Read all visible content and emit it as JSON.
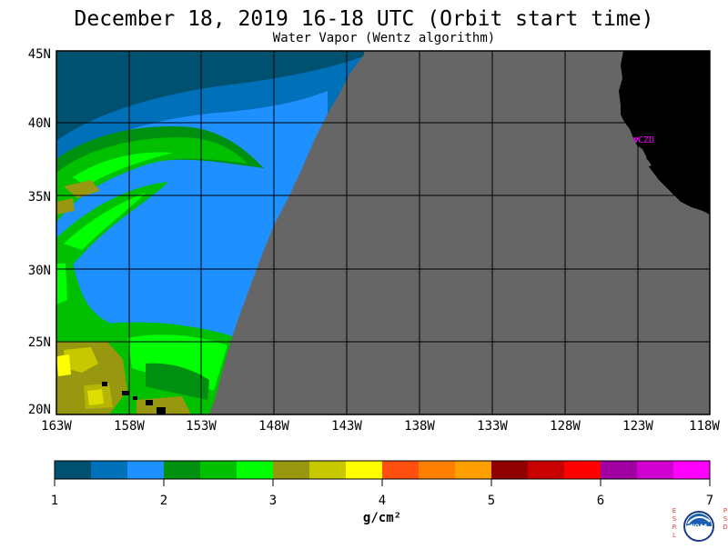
{
  "title": "December 18, 2019  16-18 UTC  (Orbit start time)",
  "subtitle": "Water Vapor (Wentz algorithm)",
  "map": {
    "lat_labels": [
      "45N",
      "40N",
      "35N",
      "30N",
      "25N",
      "20N"
    ],
    "lon_labels": [
      "163W",
      "158W",
      "153W",
      "148W",
      "143W",
      "138W",
      "133W",
      "128W",
      "123W",
      "118W"
    ],
    "station_label": "CZD",
    "no_data_color": "#666666",
    "land_color": "#000000"
  },
  "colorbar": {
    "ticks": [
      "1",
      "2",
      "3",
      "4",
      "5",
      "6",
      "7"
    ],
    "units_label": "g/cm²",
    "colors": [
      "#005070",
      "#0070b8",
      "#1e90ff",
      "#009010",
      "#00c000",
      "#00ff00",
      "#989810",
      "#c8c800",
      "#ffff00",
      "#ff5010",
      "#ff8000",
      "#ffa000",
      "#900000",
      "#c80000",
      "#ff0000",
      "#a000a0",
      "#d000d0",
      "#ff00ff"
    ]
  },
  "logo": {
    "left_letters": [
      "E",
      "S",
      "R",
      "L"
    ],
    "right_letters": [
      "P",
      "S",
      "D"
    ],
    "emblem_text": "NOAA"
  }
}
